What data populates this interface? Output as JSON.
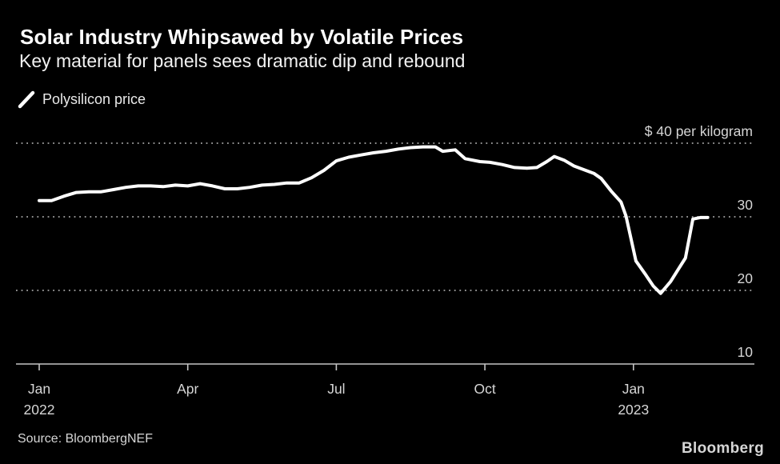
{
  "header": {
    "title": "Solar Industry Whipsawed by Volatile Prices",
    "subtitle": "Key material for panels sees dramatic dip and rebound"
  },
  "legend": {
    "series_label": "Polysilicon price"
  },
  "footer": {
    "source": "Source: BloombergNEF",
    "logo": "Bloomberg"
  },
  "colors": {
    "background": "#000000",
    "line": "#ffffff",
    "grid": "#8f8f8f",
    "axis": "#c4c4c4",
    "tick_text": "#d6d6d6",
    "title_text": "#ffffff"
  },
  "chart_data": {
    "type": "line",
    "title": "Solar Industry Whipsawed by Volatile Prices",
    "subtitle": "Key material for panels sees dramatic dip and rebound",
    "unit": "$ per kilogram",
    "grid": "dotted horizontal gridlines",
    "legend_position": "top-left",
    "x_axis": {
      "unit": "months since Jan 2022",
      "range": [
        -0.47,
        14.44
      ],
      "ticks": [
        {
          "t": 0,
          "label": "Jan",
          "sublabel": "2022"
        },
        {
          "t": 3,
          "label": "Apr",
          "sublabel": ""
        },
        {
          "t": 6,
          "label": "Jul",
          "sublabel": ""
        },
        {
          "t": 9,
          "label": "Oct",
          "sublabel": ""
        },
        {
          "t": 12,
          "label": "Jan",
          "sublabel": "2023"
        }
      ]
    },
    "y_axis": {
      "range": [
        10,
        40
      ],
      "gridline_values": [
        40,
        30,
        20
      ],
      "baseline_value": 10,
      "ticks": [
        {
          "value": 40,
          "label": "$ 40 per kilogram"
        },
        {
          "value": 30,
          "label": "30"
        },
        {
          "value": 20,
          "label": "20"
        },
        {
          "value": 10,
          "label": "10"
        }
      ]
    },
    "series": [
      {
        "name": "Polysilicon price",
        "color": "#ffffff",
        "points": [
          [
            0.0,
            32.2
          ],
          [
            0.25,
            32.2
          ],
          [
            0.5,
            32.8
          ],
          [
            0.75,
            33.3
          ],
          [
            1.0,
            33.4
          ],
          [
            1.25,
            33.4
          ],
          [
            1.5,
            33.7
          ],
          [
            1.75,
            34.0
          ],
          [
            2.0,
            34.2
          ],
          [
            2.25,
            34.2
          ],
          [
            2.5,
            34.1
          ],
          [
            2.75,
            34.3
          ],
          [
            3.0,
            34.2
          ],
          [
            3.25,
            34.5
          ],
          [
            3.5,
            34.2
          ],
          [
            3.75,
            33.8
          ],
          [
            4.0,
            33.8
          ],
          [
            4.25,
            34.0
          ],
          [
            4.5,
            34.3
          ],
          [
            4.75,
            34.4
          ],
          [
            5.0,
            34.6
          ],
          [
            5.25,
            34.6
          ],
          [
            5.5,
            35.3
          ],
          [
            5.75,
            36.3
          ],
          [
            6.0,
            37.6
          ],
          [
            6.25,
            38.1
          ],
          [
            6.5,
            38.4
          ],
          [
            6.75,
            38.7
          ],
          [
            7.0,
            38.9
          ],
          [
            7.25,
            39.2
          ],
          [
            7.5,
            39.4
          ],
          [
            7.75,
            39.5
          ],
          [
            8.0,
            39.5
          ],
          [
            8.15,
            38.9
          ],
          [
            8.4,
            39.1
          ],
          [
            8.6,
            37.9
          ],
          [
            8.9,
            37.5
          ],
          [
            9.1,
            37.4
          ],
          [
            9.35,
            37.1
          ],
          [
            9.6,
            36.7
          ],
          [
            9.85,
            36.6
          ],
          [
            10.05,
            36.7
          ],
          [
            10.25,
            37.5
          ],
          [
            10.4,
            38.2
          ],
          [
            10.6,
            37.7
          ],
          [
            10.8,
            36.9
          ],
          [
            11.0,
            36.4
          ],
          [
            11.2,
            35.9
          ],
          [
            11.35,
            35.2
          ],
          [
            11.55,
            33.5
          ],
          [
            11.75,
            32.0
          ],
          [
            11.85,
            30.1
          ],
          [
            12.05,
            24.0
          ],
          [
            12.25,
            22.1
          ],
          [
            12.4,
            20.6
          ],
          [
            12.55,
            19.6
          ],
          [
            12.75,
            21.2
          ],
          [
            12.9,
            22.8
          ],
          [
            13.05,
            24.4
          ],
          [
            13.2,
            29.7
          ],
          [
            13.35,
            29.9
          ],
          [
            13.5,
            29.9
          ]
        ]
      }
    ]
  }
}
